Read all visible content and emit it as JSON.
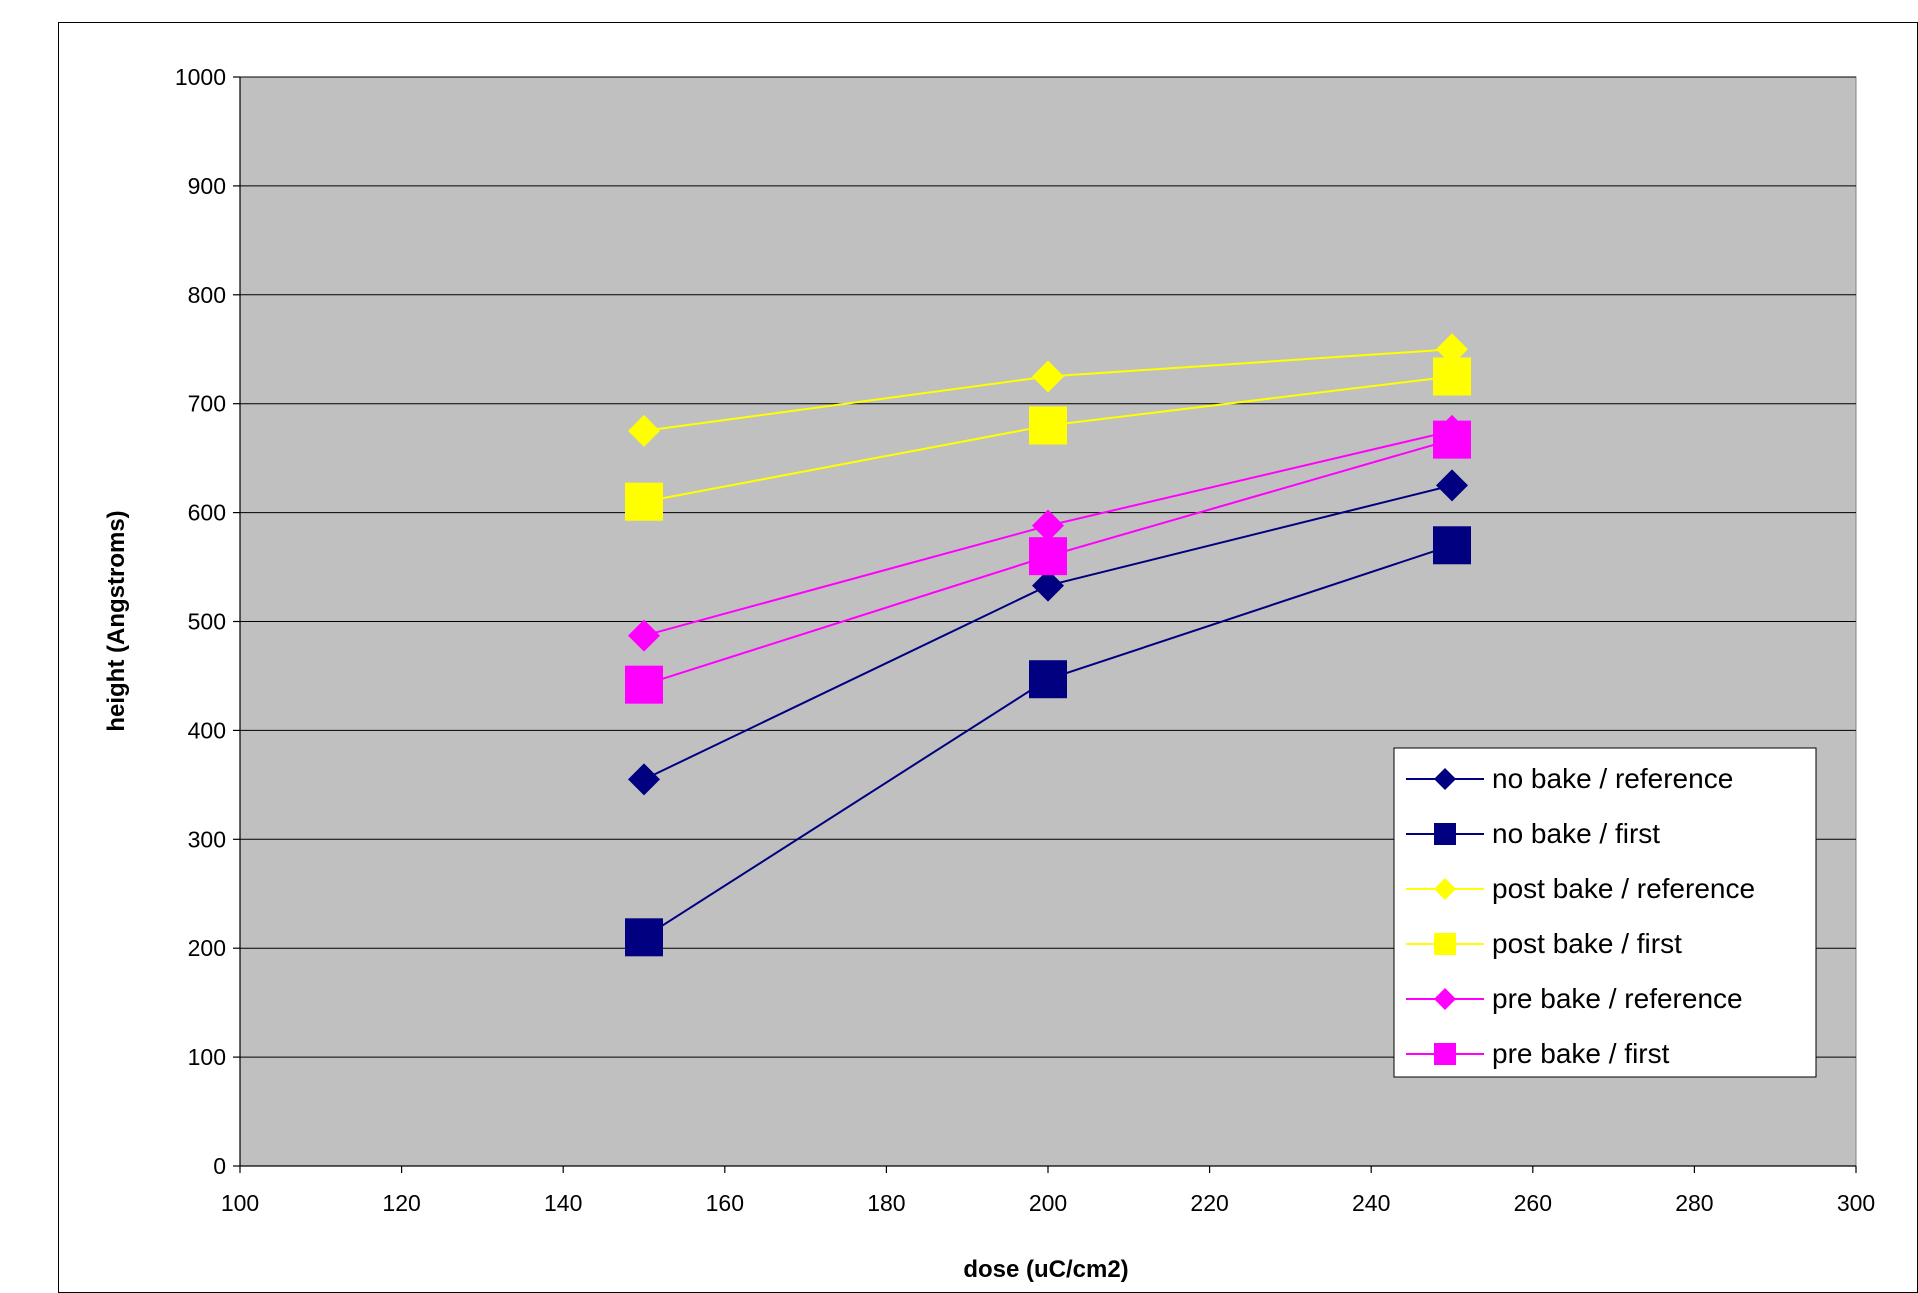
{
  "chart_data": {
    "type": "line",
    "xlabel": "dose (uC/cm2)",
    "ylabel": "height (Angstroms)",
    "xlim": [
      100,
      300
    ],
    "ylim": [
      0,
      1000
    ],
    "x_ticks": [
      100,
      120,
      140,
      160,
      180,
      200,
      220,
      240,
      260,
      280,
      300
    ],
    "y_ticks": [
      0,
      100,
      200,
      300,
      400,
      500,
      600,
      700,
      800,
      900,
      1000
    ],
    "grid": "horizontal",
    "plot_background": "#c0c0c0",
    "legend_position": "lower-right",
    "series": [
      {
        "name": "no bake / reference",
        "color": "#000080",
        "marker": "diamond",
        "x": [
          150,
          200,
          250
        ],
        "y": [
          355,
          533,
          625
        ]
      },
      {
        "name": "no bake / first",
        "color": "#000080",
        "marker": "square",
        "x": [
          150,
          200,
          250
        ],
        "y": [
          210,
          447,
          570
        ]
      },
      {
        "name": "post bake / reference",
        "color": "#ffff00",
        "marker": "diamond",
        "x": [
          150,
          200,
          250
        ],
        "y": [
          675,
          725,
          750
        ]
      },
      {
        "name": "post bake / first",
        "color": "#ffff00",
        "marker": "square",
        "x": [
          150,
          200,
          250
        ],
        "y": [
          610,
          680,
          725
        ]
      },
      {
        "name": "pre bake / reference",
        "color": "#ff00ff",
        "marker": "diamond",
        "x": [
          150,
          200,
          250
        ],
        "y": [
          487,
          588,
          675
        ]
      },
      {
        "name": "pre bake / first",
        "color": "#ff00ff",
        "marker": "square",
        "x": [
          150,
          200,
          250
        ],
        "y": [
          442,
          560,
          667
        ]
      }
    ]
  }
}
